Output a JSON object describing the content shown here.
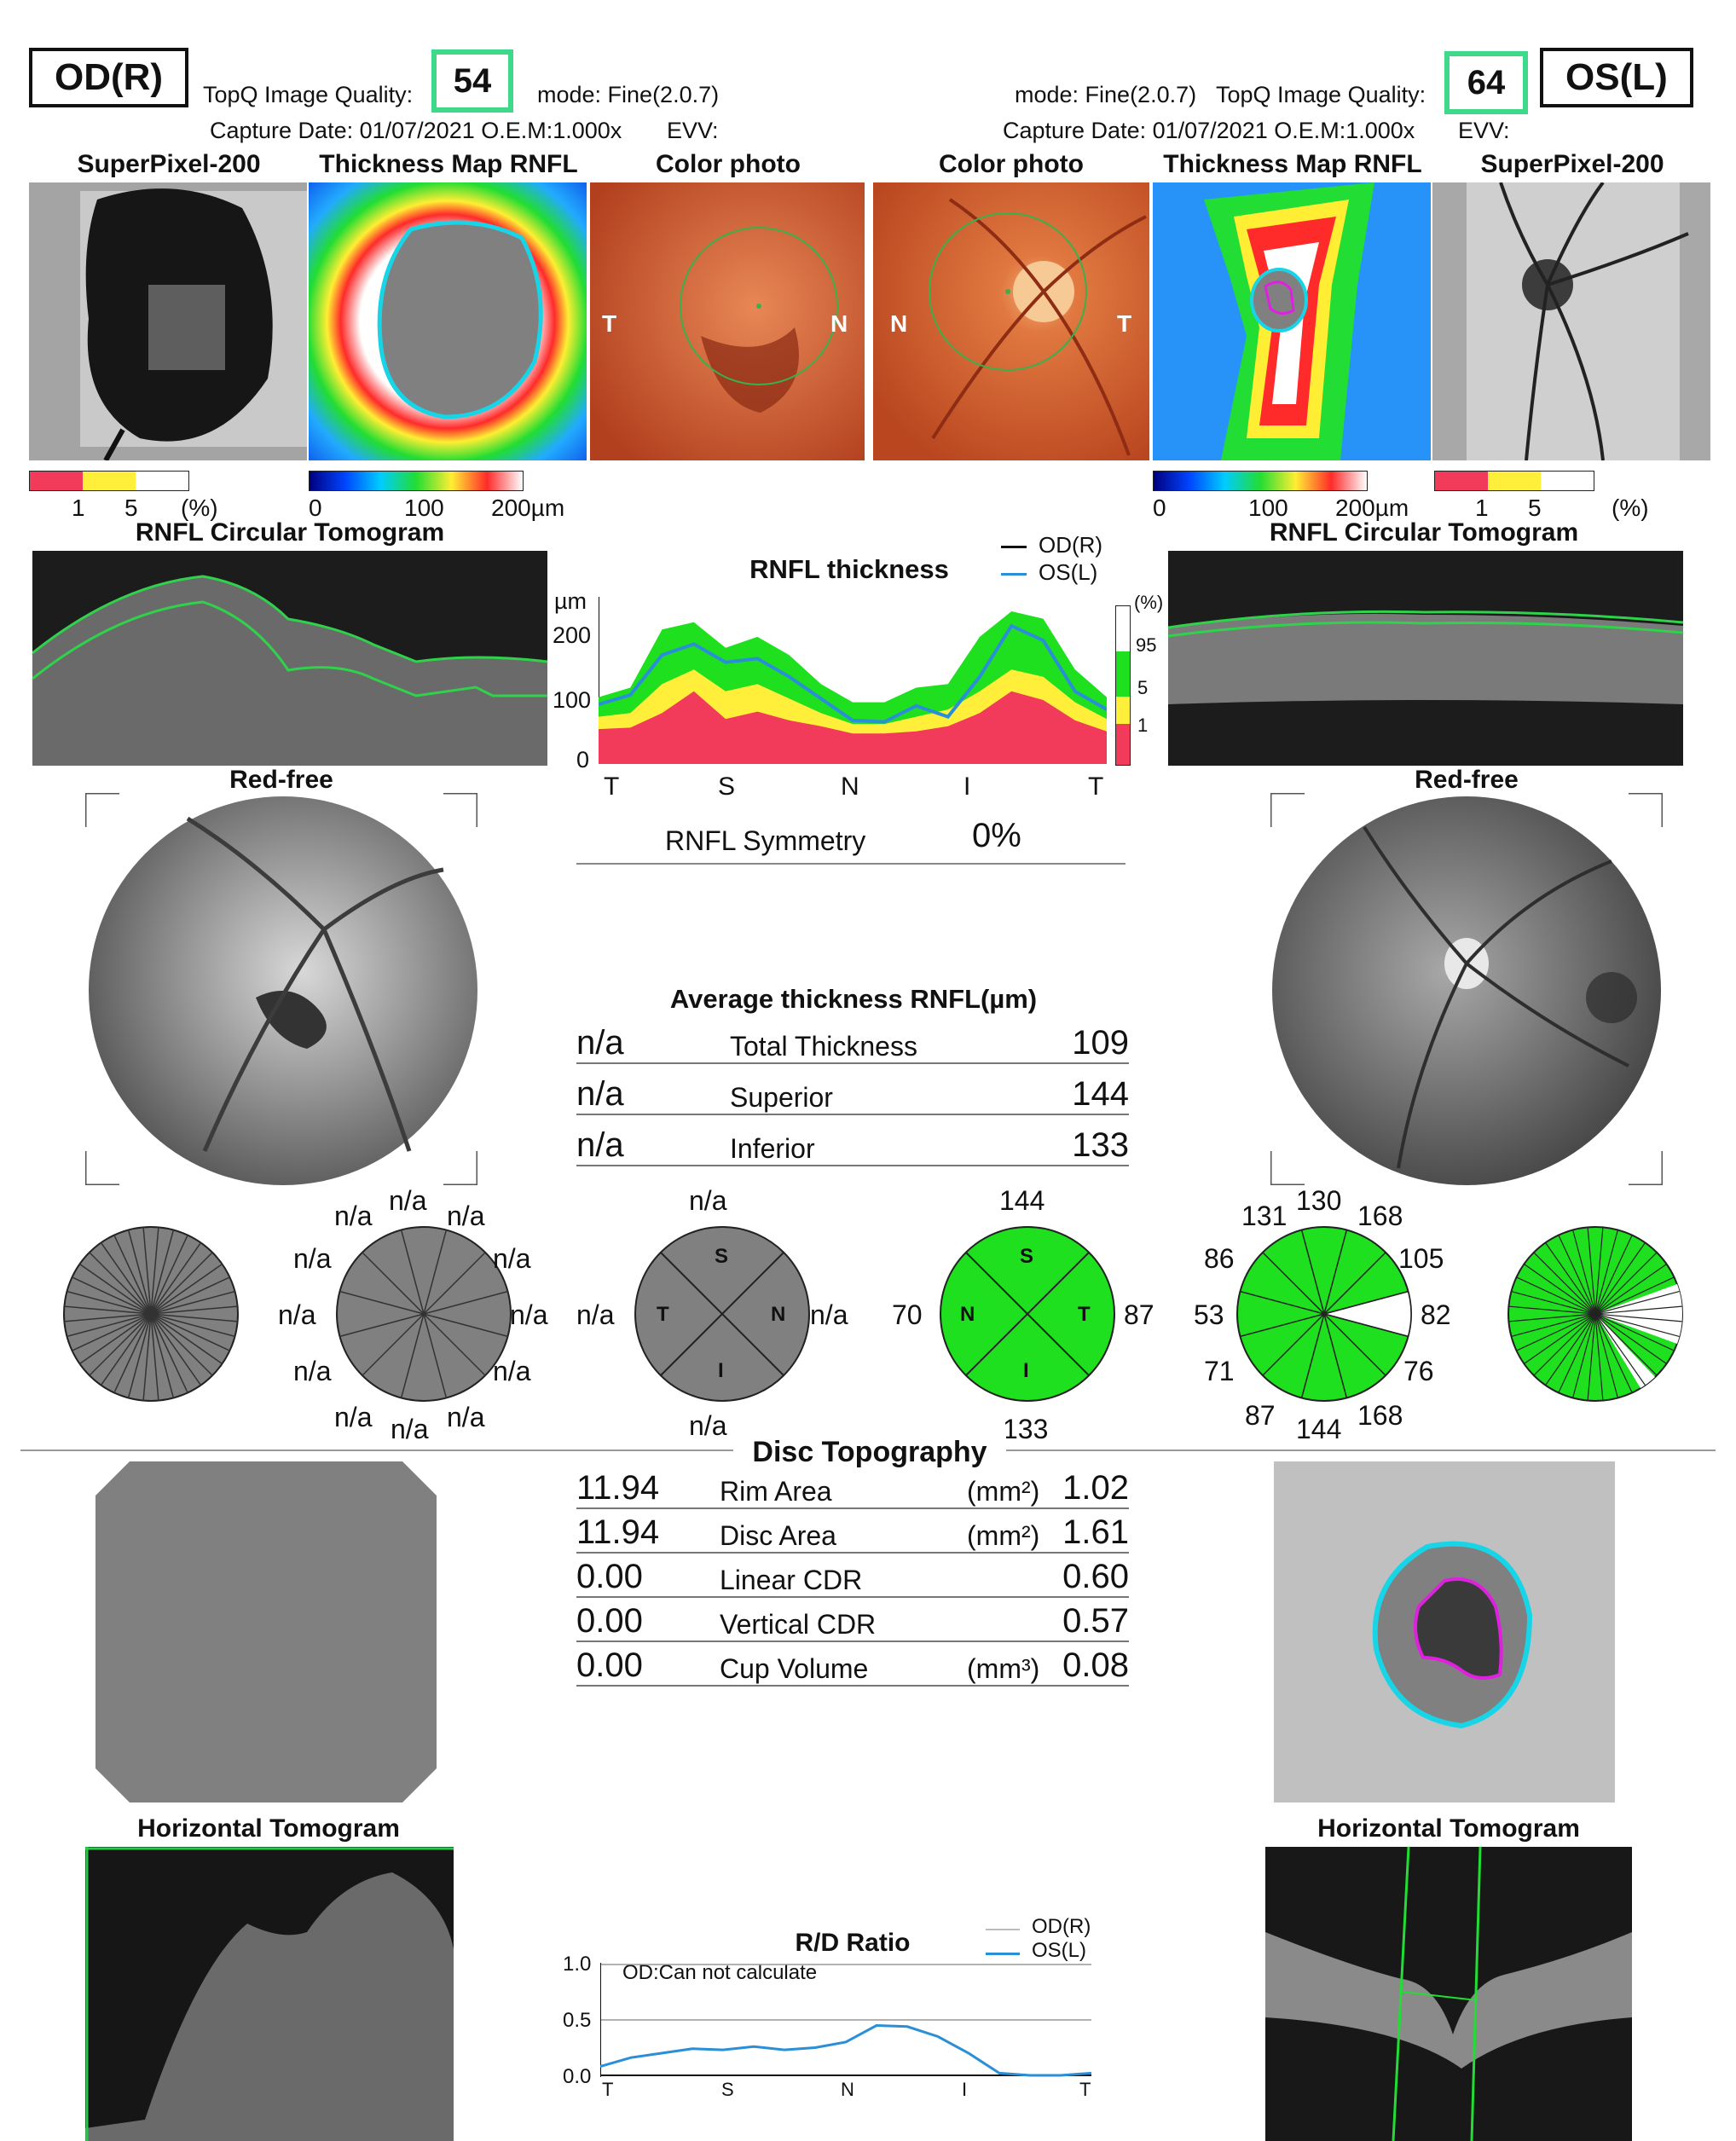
{
  "left": {
    "eye": "OD(R)",
    "quality_label": "TopQ Image Quality:",
    "quality": "54",
    "mode": "mode: Fine(2.0.7)",
    "capture": "Capture Date: 01/07/2021 O.E.M:1.000x",
    "evv": "EVV:",
    "titles": [
      "SuperPixel-200",
      "Thickness Map RNFL",
      "Color photo"
    ],
    "photo_letters": [
      "T",
      "N"
    ],
    "sp_scale": [
      "1",
      "5",
      "(%)"
    ],
    "tm_scale": [
      "0",
      "100",
      "200µm"
    ],
    "circ_title": "RNFL Circular Tomogram",
    "redfree": "Red-free",
    "horiz_title": "Horizontal Tomogram",
    "clock_labels": [
      "n/a",
      "n/a",
      "n/a",
      "n/a",
      "n/a",
      "n/a",
      "n/a",
      "n/a",
      "n/a",
      "n/a",
      "n/a",
      "n/a"
    ],
    "quad_values": [
      "n/a",
      "n/a",
      "n/a",
      "n/a"
    ],
    "quad_letters": [
      "S",
      "T",
      "N",
      "I"
    ]
  },
  "right": {
    "eye": "OS(L)",
    "quality_label": "TopQ Image Quality:",
    "quality": "64",
    "mode": "mode: Fine(2.0.7)",
    "capture": "Capture Date: 01/07/2021 O.E.M:1.000x",
    "evv": "EVV:",
    "titles": [
      "Color photo",
      "Thickness Map RNFL",
      "SuperPixel-200"
    ],
    "photo_letters": [
      "N",
      "T"
    ],
    "sp_scale": [
      "1",
      "5",
      "(%)"
    ],
    "tm_scale": [
      "0",
      "100",
      "200µm"
    ],
    "circ_title": "RNFL Circular Tomogram",
    "redfree": "Red-free",
    "horiz_title": "Horizontal Tomogram",
    "quad_values": [
      "144",
      "70",
      "87",
      "133"
    ],
    "quad_letters": [
      "S",
      "N",
      "T",
      "I"
    ],
    "clock_labels": [
      "131",
      "130",
      "168",
      "105",
      "82",
      "76",
      "168",
      "144",
      "87",
      "71",
      "53",
      "86"
    ]
  },
  "rnfl_chart": {
    "title": "RNFL thickness",
    "ylabel": "µm",
    "yticks": [
      "200",
      "100",
      "0"
    ],
    "xticks": [
      "T",
      "S",
      "N",
      "I",
      "T"
    ],
    "legend": [
      "OD(R)",
      "OS(L)"
    ],
    "pct_label": "(%)",
    "pct_ticks": [
      "95",
      "5",
      "1"
    ],
    "chart_data": {
      "type": "area",
      "ylim": [
        0,
        230
      ],
      "x": [
        0,
        1,
        2,
        3,
        4,
        5,
        6,
        7,
        8,
        9,
        10,
        11,
        12,
        13,
        14,
        15,
        16
      ],
      "series": [
        {
          "name": "OS(L)",
          "values": [
            82,
            95,
            150,
            165,
            140,
            145,
            120,
            90,
            60,
            58,
            80,
            65,
            120,
            190,
            170,
            100,
            75
          ]
        }
      ],
      "bands": {
        "p95": [
          92,
          105,
          185,
          195,
          160,
          175,
          150,
          110,
          85,
          85,
          105,
          110,
          175,
          210,
          200,
          130,
          92
        ],
        "p5": [
          65,
          70,
          110,
          130,
          100,
          110,
          90,
          70,
          55,
          55,
          65,
          75,
          100,
          130,
          120,
          85,
          62
        ],
        "p1": [
          48,
          50,
          70,
          100,
          62,
          72,
          60,
          52,
          42,
          42,
          45,
          52,
          70,
          100,
          88,
          60,
          45
        ]
      }
    }
  },
  "symmetry": {
    "label": "RNFL Symmetry",
    "value": "0%"
  },
  "avg": {
    "title": "Average thickness RNFL(µm)",
    "rows": [
      {
        "od": "n/a",
        "label": "Total Thickness",
        "os": "109"
      },
      {
        "od": "n/a",
        "label": "Superior",
        "os": "144"
      },
      {
        "od": "n/a",
        "label": "Inferior",
        "os": "133"
      }
    ]
  },
  "disc": {
    "title": "Disc Topography",
    "rows": [
      {
        "od": "11.94",
        "label": "Rim Area",
        "unit": "(mm²)",
        "os": "1.02"
      },
      {
        "od": "11.94",
        "label": "Disc Area",
        "unit": "(mm²)",
        "os": "1.61"
      },
      {
        "od": "0.00",
        "label": "Linear CDR",
        "unit": "",
        "os": "0.60"
      },
      {
        "od": "0.00",
        "label": "Vertical CDR",
        "unit": "",
        "os": "0.57"
      },
      {
        "od": "0.00",
        "label": "Cup Volume",
        "unit": "(mm³)",
        "os": "0.08"
      }
    ]
  },
  "rd_chart": {
    "title": "R/D Ratio",
    "note": "OD:Can not calculate",
    "legend": [
      "OD(R)",
      "OS(L)"
    ],
    "yticks": [
      "1.0",
      "0.5",
      "0.0"
    ],
    "xticks": [
      "T",
      "S",
      "N",
      "I",
      "T"
    ],
    "chart_data": {
      "type": "line",
      "ylim": [
        0,
        1.0
      ],
      "x": [
        0,
        1,
        2,
        3,
        4,
        5,
        6,
        7,
        8,
        9,
        10,
        11,
        12,
        13,
        14,
        15,
        16
      ],
      "series": [
        {
          "name": "OS(L)",
          "values": [
            0.08,
            0.16,
            0.2,
            0.24,
            0.23,
            0.26,
            0.23,
            0.25,
            0.3,
            0.45,
            0.44,
            0.35,
            0.2,
            0.02,
            0,
            0,
            0.02
          ]
        }
      ]
    }
  },
  "colors": {
    "quality_border": "#3ed98a",
    "os_line": "#2a8fd6",
    "green": "#1ee01e",
    "yellow": "#ffef3a",
    "red": "#f23a5a"
  }
}
